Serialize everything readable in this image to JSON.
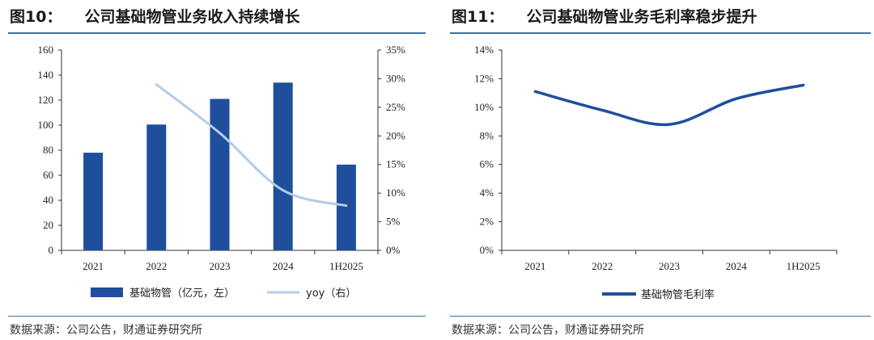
{
  "figures": [
    {
      "number": "图10：",
      "title": "公司基础物管业务收入持续增长",
      "source": "数据来源：公司公告，财通证券研究所"
    },
    {
      "number": "图11：",
      "title": "公司基础物管业务毛利率稳步提升",
      "source": "数据来源：公司公告，财通证券研究所"
    }
  ],
  "chart_data": [
    {
      "type": "bar+line",
      "categories": [
        "2021",
        "2022",
        "2023",
        "2024",
        "1H2025"
      ],
      "series": [
        {
          "name": "基础物管（亿元，左）",
          "type": "bar",
          "axis": "left",
          "color": "#1f4e9c",
          "values": [
            78,
            100.5,
            121,
            134,
            68.5
          ]
        },
        {
          "name": "yoy（右）",
          "type": "line",
          "axis": "right",
          "color": "#b4cbea",
          "values": [
            null,
            0.29,
            0.205,
            0.105,
            0.078
          ]
        }
      ],
      "y_left": {
        "min": 0,
        "max": 160,
        "step": 20,
        "ticks": [
          "0",
          "20",
          "40",
          "60",
          "80",
          "100",
          "120",
          "140",
          "160"
        ]
      },
      "y_right": {
        "min": 0,
        "max": 0.35,
        "step": 0.05,
        "ticks": [
          "0%",
          "5%",
          "10%",
          "15%",
          "20%",
          "25%",
          "30%",
          "35%"
        ]
      },
      "grid": false,
      "legend": "bottom"
    },
    {
      "type": "line",
      "categories": [
        "2021",
        "2022",
        "2023",
        "2024",
        "1H2025"
      ],
      "series": [
        {
          "name": "基础物管毛利率",
          "color": "#1f4e9c",
          "values": [
            0.111,
            0.098,
            0.088,
            0.106,
            0.1155
          ]
        }
      ],
      "y": {
        "min": 0,
        "max": 0.14,
        "step": 0.02,
        "ticks": [
          "0%",
          "2%",
          "4%",
          "6%",
          "8%",
          "10%",
          "12%",
          "14%"
        ]
      },
      "grid": false,
      "legend": "bottom"
    }
  ]
}
